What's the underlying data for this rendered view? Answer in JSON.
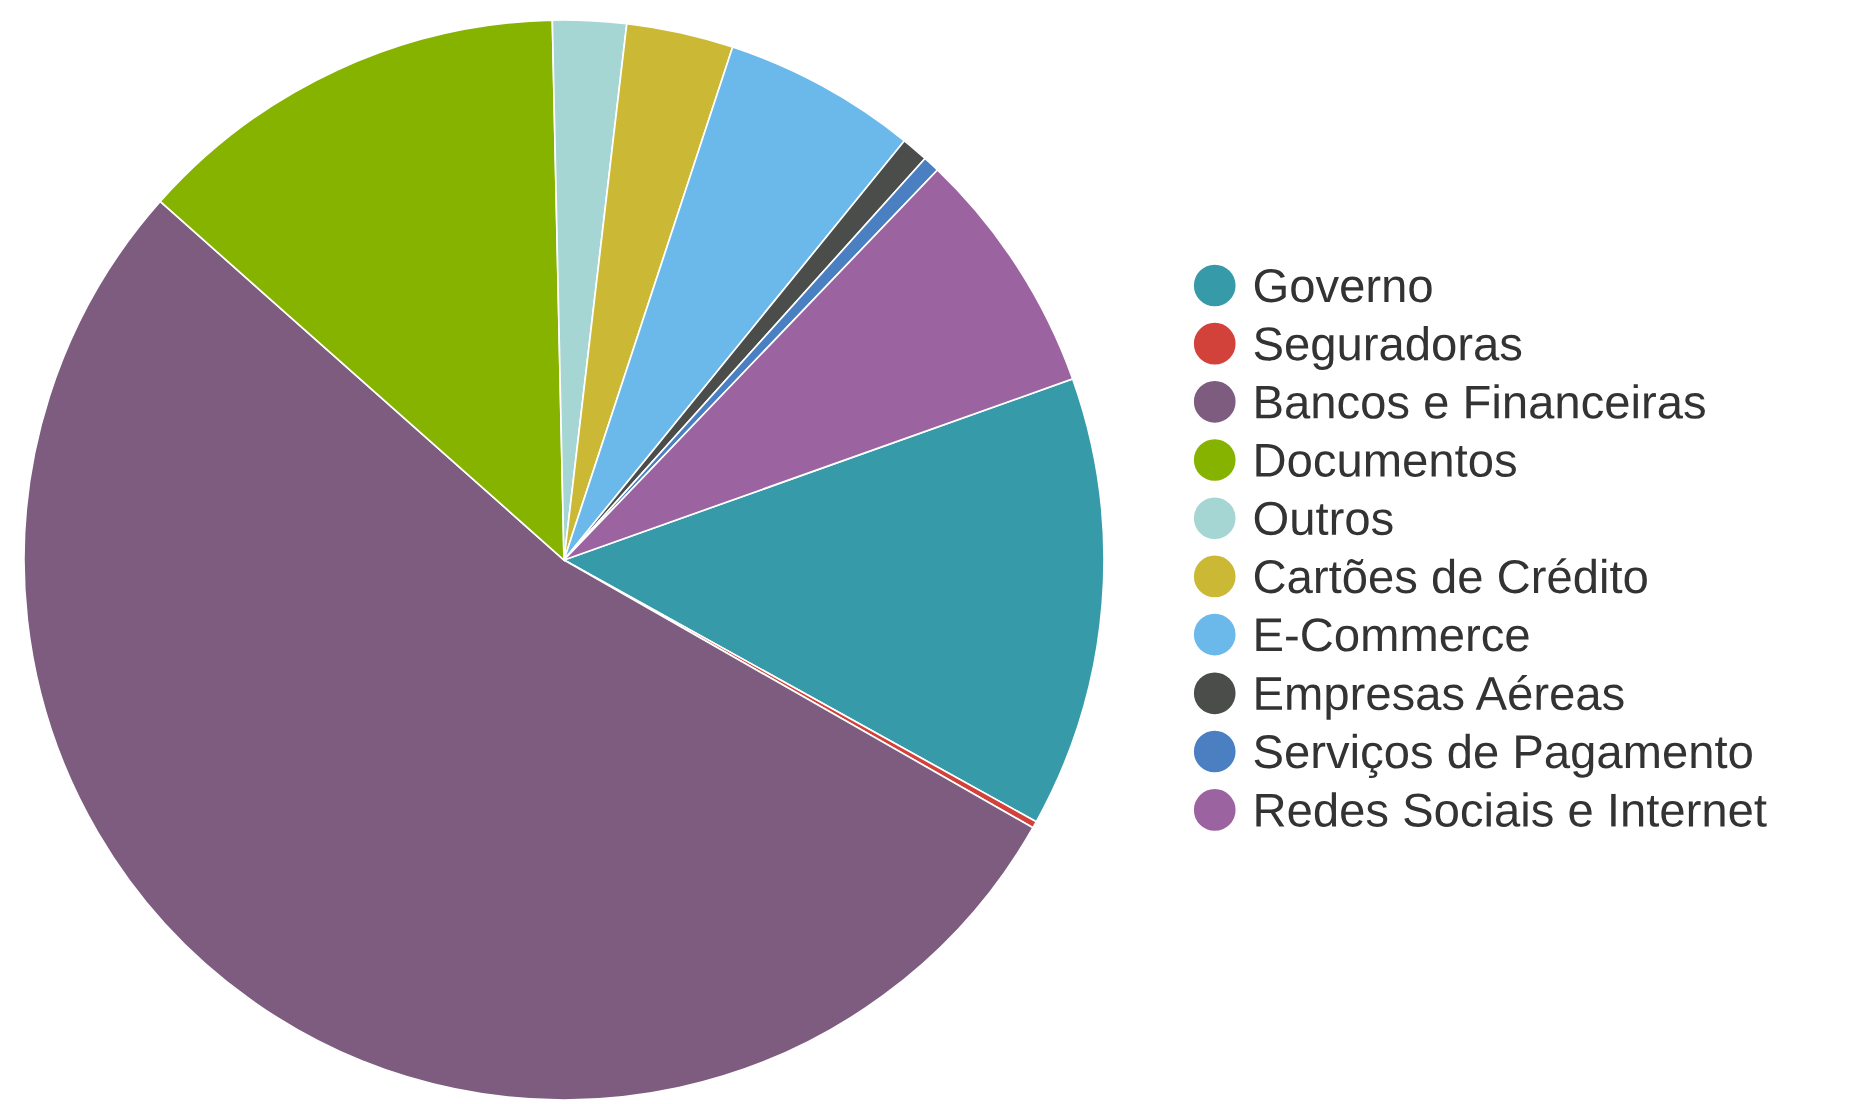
{
  "chart_data": {
    "type": "pie",
    "categories": [
      "Governo",
      "Seguradoras",
      "Bancos e Financeiras",
      "Documentos",
      "Outros",
      "Cartões de Crédito",
      "E-Commerce",
      "Empresas Aéreas",
      "Serviços de Pagamento",
      "Redes Sociais e Internet"
    ],
    "values": [
      13.5,
      0.2,
      53.3,
      13.1,
      2.2,
      3.2,
      5.8,
      0.8,
      0.5,
      7.4
    ],
    "colors": [
      "#369aa9",
      "#d2423b",
      "#7d5c80",
      "#86b300",
      "#a5d6d3",
      "#cbb935",
      "#6bb9ea",
      "#4a4d4a",
      "#4a7fc1",
      "#9c63a1"
    ],
    "legend": "right"
  }
}
